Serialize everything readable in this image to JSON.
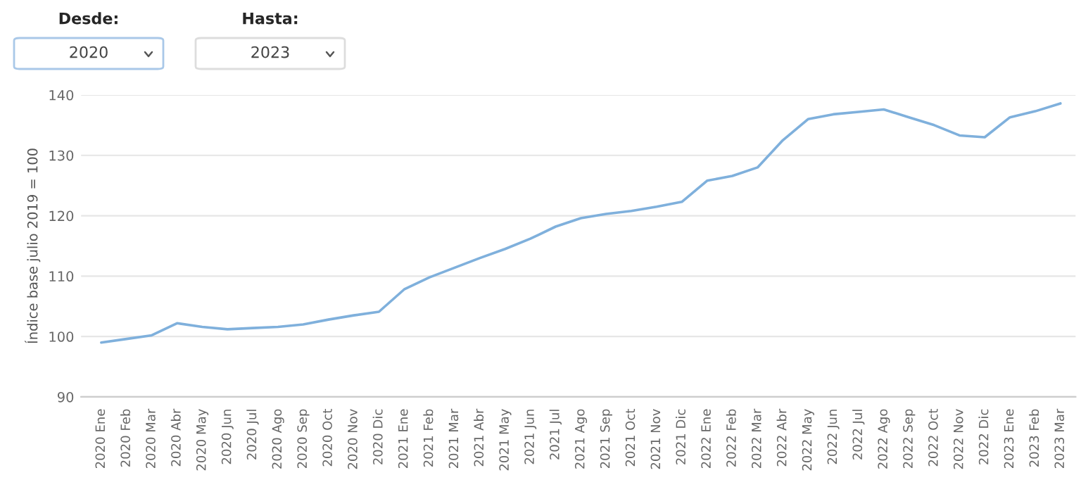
{
  "chart_data": {
    "type": "line",
    "ylabel": "Índice base julio 2019 = 100",
    "annotations": [
      "Desde:",
      "2020",
      "Hasta:",
      "2023"
    ],
    "categories": [
      "2020 Ene",
      "2020 Feb",
      "2020 Mar",
      "2020 Abr",
      "2020 May",
      "2020 Jun",
      "2020 Jul",
      "2020 Ago",
      "2020 Sep",
      "2020 Oct",
      "2020 Nov",
      "2020 Dic",
      "2021 Ene",
      "2021 Feb",
      "2021 Mar",
      "2021 Abr",
      "2021 May",
      "2021 Jun",
      "2021 Jul",
      "2021 Ago",
      "2021 Sep",
      "2021 Oct",
      "2021 Nov",
      "2021 Dic",
      "2022 Ene",
      "2022 Feb",
      "2022 Mar",
      "2022 Abr",
      "2022 May",
      "2022 Jun",
      "2022 Jul",
      "2022 Ago",
      "2022 Sep",
      "2022 Oct",
      "2022 Nov",
      "2022 Dic",
      "2023 Ene",
      "2023 Feb",
      "2023 Mar"
    ],
    "series": [
      {
        "color": "#7fb0dc",
        "values": [
          99.0,
          99.6,
          100.2,
          102.2,
          101.6,
          101.2,
          101.4,
          101.6,
          102.0,
          102.8,
          103.5,
          104.1,
          107.8,
          109.8,
          111.4,
          113.0,
          114.5,
          116.2,
          118.2,
          119.6,
          120.3,
          120.8,
          121.5,
          122.3,
          125.8,
          126.6,
          128.0,
          132.5,
          136.0,
          136.8,
          137.2,
          137.6,
          136.3,
          135.0,
          133.3,
          133.0,
          136.3,
          137.3,
          138.6
        ]
      }
    ],
    "ylim": [
      90,
      140
    ],
    "yticks": [
      90,
      100,
      110,
      120,
      130,
      140
    ],
    "grid": "y",
    "legend": false,
    "marker": "none",
    "line_style": "solid"
  }
}
